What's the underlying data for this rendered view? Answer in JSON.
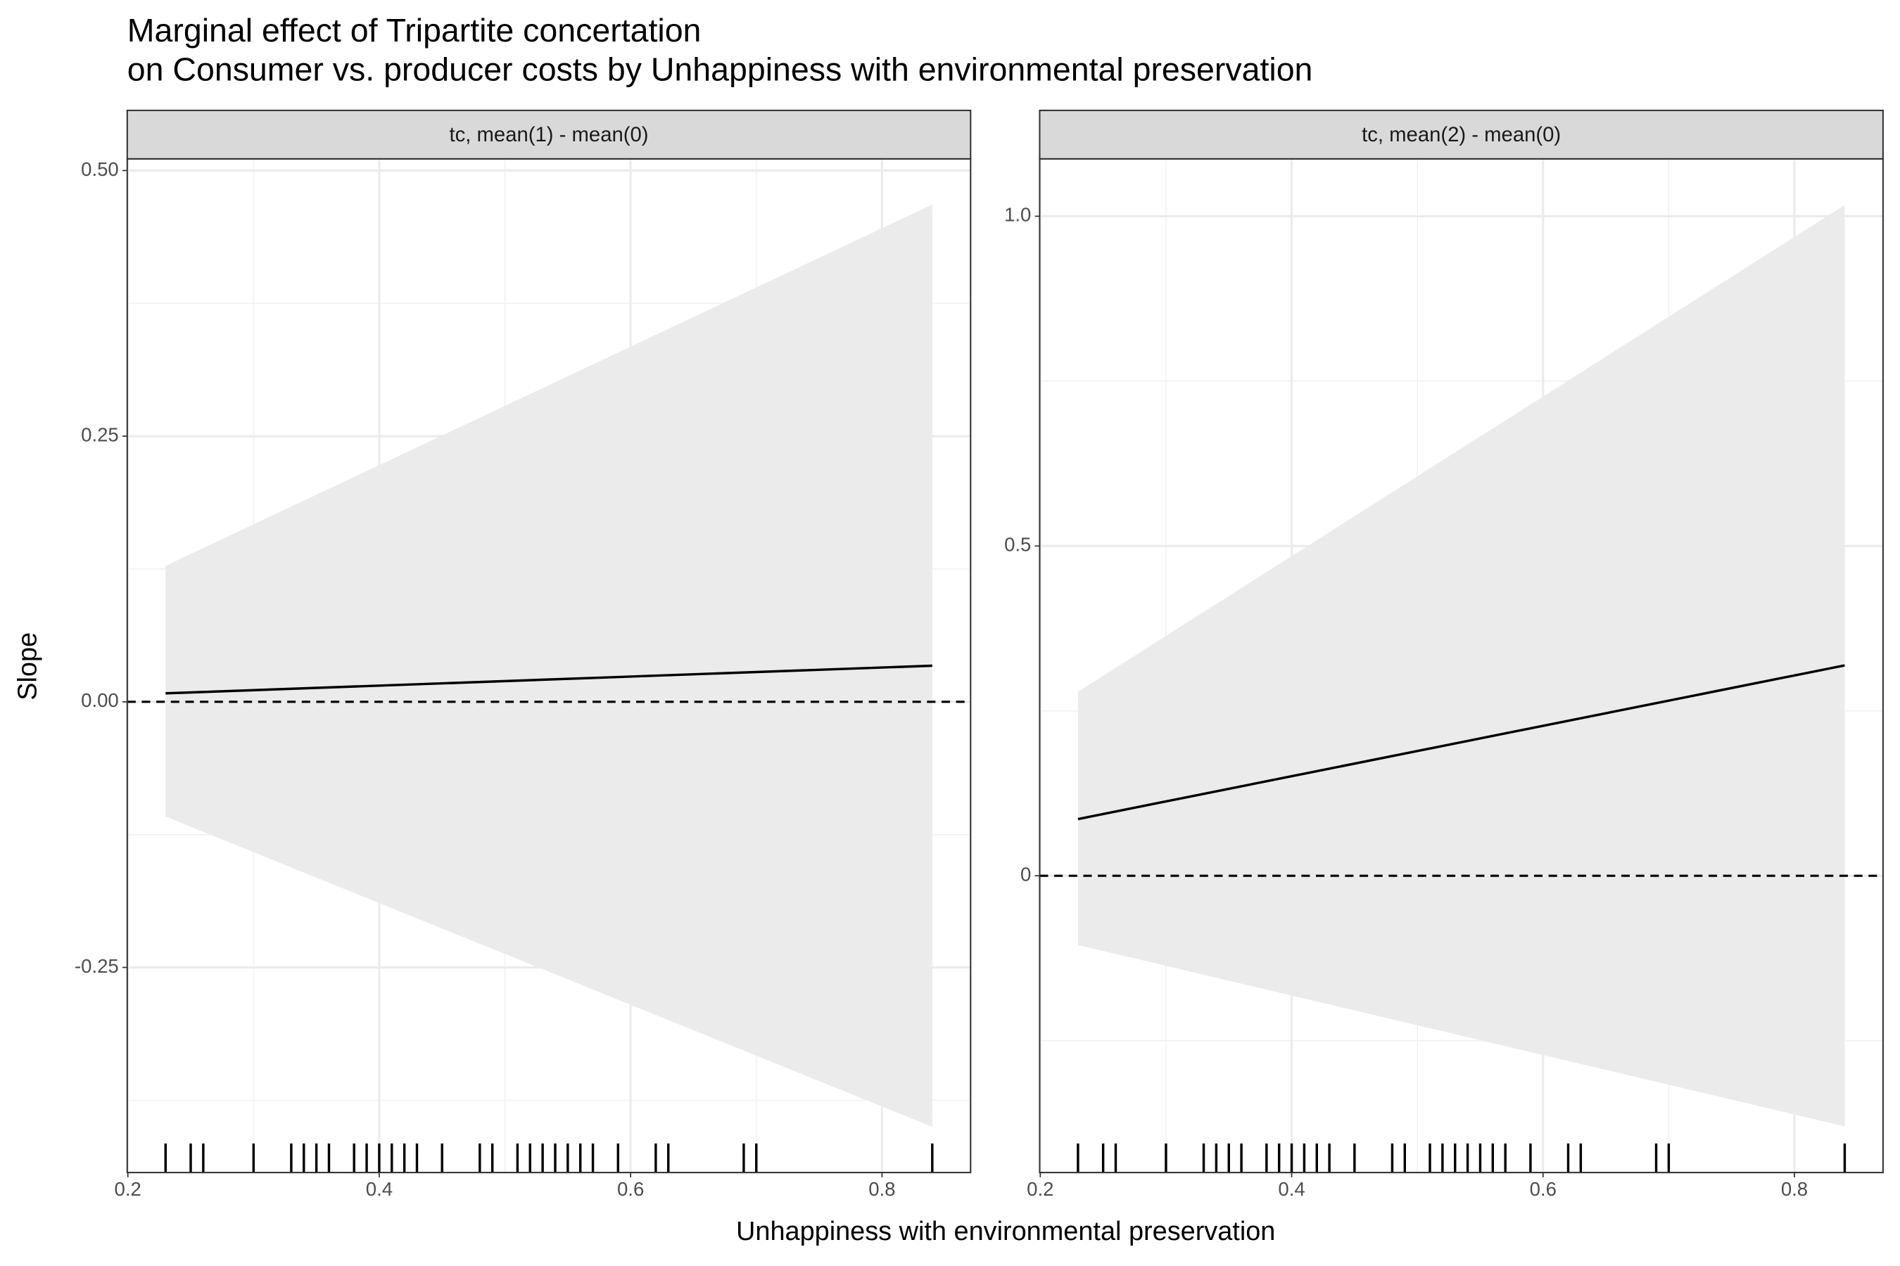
{
  "chart_data": {
    "type": "line",
    "title": "Marginal effect of Tripartite concertation\non Consumer vs. producer costs by Unhappiness with environmental preservation",
    "x_label": "Unhappiness with environmental preservation",
    "y_label": "Slope",
    "grid": true,
    "panels": [
      {
        "strip": "tc, mean(1) - mean(0)",
        "x": [
          0.23,
          0.84
        ],
        "series": [
          {
            "color": "#000000",
            "values": [
              0.008,
              0.034
            ]
          }
        ],
        "band_upper": [
          0.128,
          0.468
        ],
        "band_lower": [
          -0.108,
          -0.4
        ],
        "band_color": "#ebebeb",
        "hline": 0,
        "xlim": [
          0.1995,
          0.8705
        ],
        "xticks": [
          0.2,
          0.4,
          0.6,
          0.8
        ],
        "ylim": [
          -0.443,
          0.511
        ],
        "yticks": [
          {
            "value": -0.25,
            "label": "-0.25"
          },
          {
            "value": 0,
            "label": "0.00"
          },
          {
            "value": 0.25,
            "label": "0.25"
          },
          {
            "value": 0.5,
            "label": "0.50"
          }
        ],
        "rug": [
          0.23,
          0.25,
          0.26,
          0.3,
          0.33,
          0.34,
          0.35,
          0.36,
          0.38,
          0.39,
          0.4,
          0.41,
          0.42,
          0.43,
          0.45,
          0.48,
          0.49,
          0.51,
          0.52,
          0.53,
          0.54,
          0.55,
          0.56,
          0.57,
          0.59,
          0.62,
          0.63,
          0.69,
          0.7,
          0.84
        ]
      },
      {
        "strip": "tc, mean(2) - mean(0)",
        "x": [
          0.23,
          0.84
        ],
        "series": [
          {
            "color": "#000000",
            "values": [
              0.086,
              0.319
            ]
          }
        ],
        "band_upper": [
          0.279,
          1.017
        ],
        "band_lower": [
          -0.105,
          -0.38
        ],
        "band_color": "#ebebeb",
        "hline": 0,
        "xlim": [
          0.1995,
          0.8705
        ],
        "xticks": [
          0.2,
          0.4,
          0.6,
          0.8
        ],
        "ylim": [
          -0.45,
          1.087
        ],
        "yticks": [
          0,
          0.5,
          {
            "value": 1,
            "label": "1.0"
          }
        ],
        "rug": [
          0.23,
          0.25,
          0.26,
          0.3,
          0.33,
          0.34,
          0.35,
          0.36,
          0.38,
          0.39,
          0.4,
          0.41,
          0.42,
          0.43,
          0.45,
          0.48,
          0.49,
          0.51,
          0.52,
          0.53,
          0.54,
          0.55,
          0.56,
          0.57,
          0.59,
          0.62,
          0.63,
          0.69,
          0.7,
          0.84
        ]
      }
    ]
  }
}
